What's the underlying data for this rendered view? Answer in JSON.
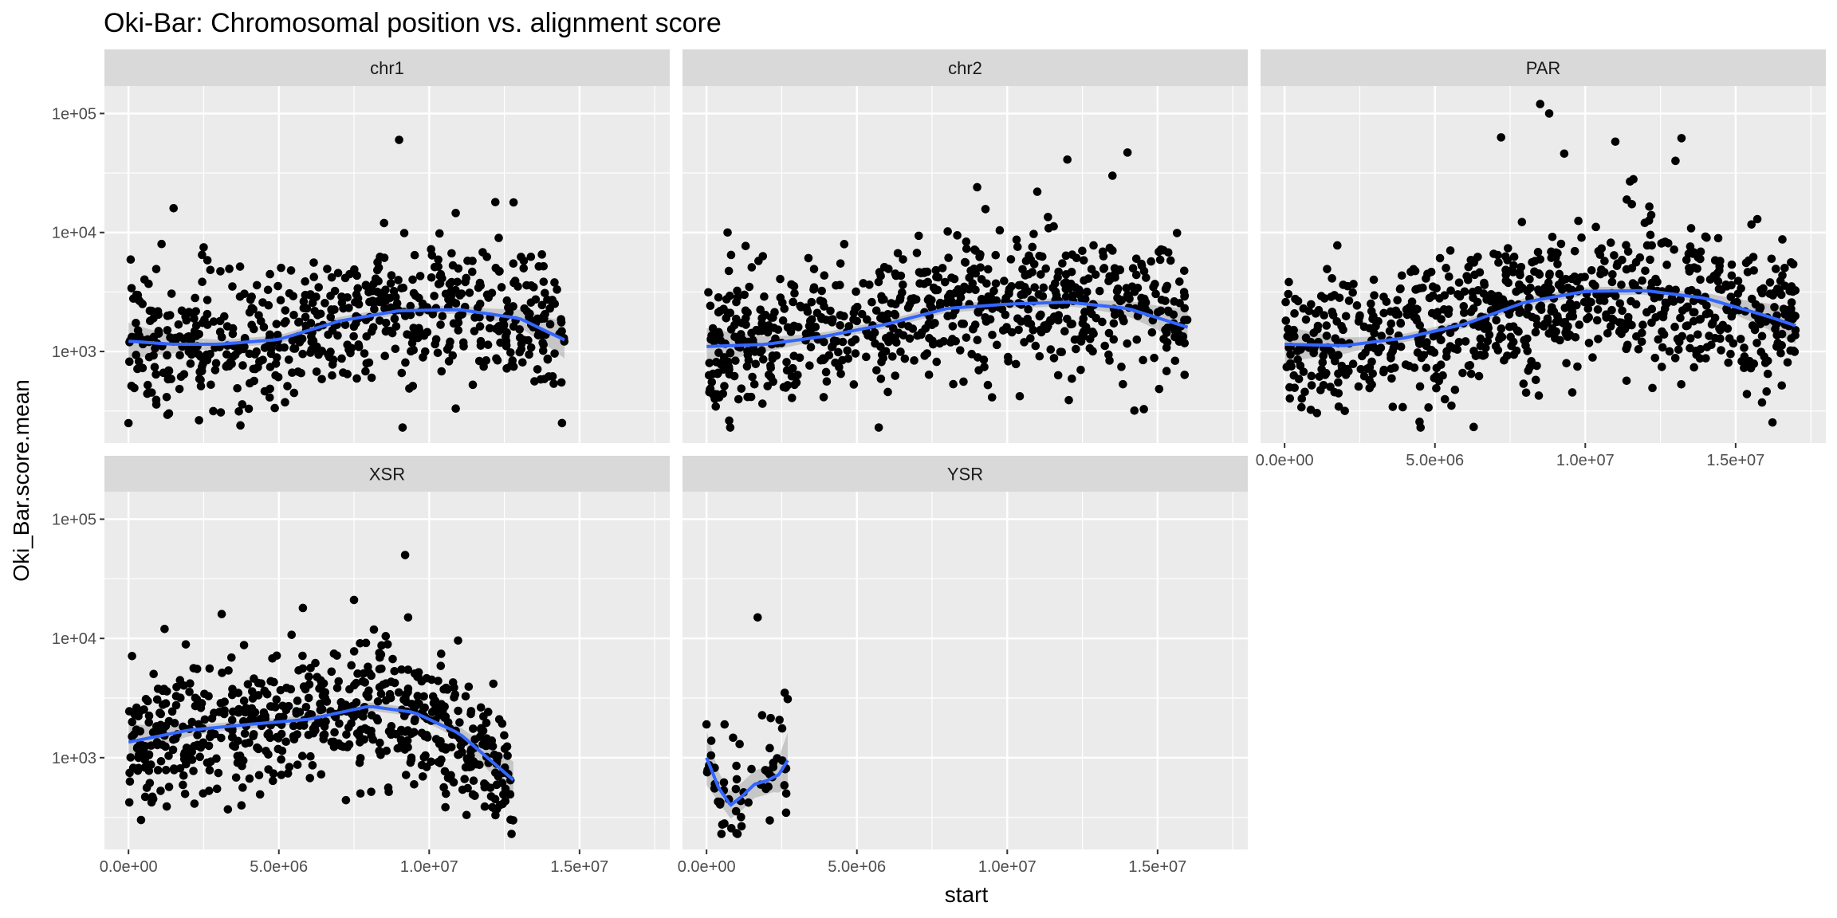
{
  "chart_data": {
    "type": "scatter",
    "title": "Oki-Bar: Chromosomal position vs. alignment score",
    "xlabel": "start",
    "ylabel": "Oki_Bar.score.mean",
    "y_scale": "log10",
    "x_range": [
      -800000,
      18000000
    ],
    "y_range": [
      170,
      170000
    ],
    "x_ticks": [
      {
        "value": 0,
        "label": "0.0e+00"
      },
      {
        "value": 5000000,
        "label": "5.0e+06"
      },
      {
        "value": 10000000,
        "label": "1.0e+07"
      },
      {
        "value": 15000000,
        "label": "1.5e+07"
      }
    ],
    "y_ticks": [
      {
        "value": 1000,
        "label": "1e+03"
      },
      {
        "value": 10000,
        "label": "1e+04"
      },
      {
        "value": 100000,
        "label": "1e+05"
      }
    ],
    "smooth_method": "loess (with confidence band)",
    "colors": {
      "panel_bg": "#ebebeb",
      "grid": "#ffffff",
      "strip_bg": "#d9d9d9",
      "points": "#000000",
      "smooth": "#3366ff",
      "band": "#999999"
    },
    "panels": [
      {
        "name": "chr1",
        "seed": 11,
        "n_points": 620,
        "x_extent": [
          0,
          14500000
        ],
        "scatter_sd": 0.28,
        "smooth": [
          [
            0,
            1220
          ],
          [
            1500000,
            1150
          ],
          [
            3000000,
            1150
          ],
          [
            5000000,
            1260
          ],
          [
            7000000,
            1800
          ],
          [
            9000000,
            2200
          ],
          [
            11000000,
            2250
          ],
          [
            13000000,
            1900
          ],
          [
            14500000,
            1250
          ]
        ],
        "outliers": [
          [
            0,
            250
          ],
          [
            1500000,
            16000
          ],
          [
            2500000,
            7500
          ],
          [
            1100000,
            8000
          ],
          [
            9000000,
            60000
          ],
          [
            12200000,
            18000
          ],
          [
            8500000,
            12000
          ],
          [
            4000000,
            330
          ]
        ]
      },
      {
        "name": "chr2",
        "seed": 23,
        "n_points": 720,
        "x_extent": [
          0,
          16000000
        ],
        "scatter_sd": 0.28,
        "smooth": [
          [
            0,
            1100
          ],
          [
            2000000,
            1150
          ],
          [
            4000000,
            1350
          ],
          [
            6000000,
            1700
          ],
          [
            8000000,
            2300
          ],
          [
            10000000,
            2500
          ],
          [
            12000000,
            2600
          ],
          [
            14000000,
            2300
          ],
          [
            16000000,
            1600
          ]
        ],
        "outliers": [
          [
            12000000,
            41000
          ],
          [
            14000000,
            47000
          ],
          [
            9000000,
            24000
          ],
          [
            1300000,
            7700
          ],
          [
            700000,
            10000
          ],
          [
            11000000,
            22000
          ],
          [
            13500000,
            30000
          ]
        ]
      },
      {
        "name": "PAR",
        "seed": 37,
        "n_points": 820,
        "x_extent": [
          0,
          17000000
        ],
        "scatter_sd": 0.3,
        "smooth": [
          [
            0,
            1150
          ],
          [
            2000000,
            1120
          ],
          [
            4000000,
            1300
          ],
          [
            6000000,
            1700
          ],
          [
            8000000,
            2600
          ],
          [
            10000000,
            3200
          ],
          [
            12000000,
            3250
          ],
          [
            14000000,
            2800
          ],
          [
            16000000,
            2000
          ],
          [
            17000000,
            1650
          ]
        ],
        "outliers": [
          [
            8500000,
            120000
          ],
          [
            8800000,
            100000
          ],
          [
            7200000,
            63000
          ],
          [
            9300000,
            46000
          ],
          [
            11000000,
            58000
          ],
          [
            13200000,
            62000
          ],
          [
            13000000,
            40000
          ],
          [
            11600000,
            28000
          ]
        ]
      },
      {
        "name": "XSR",
        "seed": 51,
        "n_points": 640,
        "x_extent": [
          0,
          12800000
        ],
        "scatter_sd": 0.27,
        "smooth": [
          [
            0,
            1350
          ],
          [
            2000000,
            1700
          ],
          [
            4000000,
            1900
          ],
          [
            6000000,
            2100
          ],
          [
            8000000,
            2700
          ],
          [
            9500000,
            2400
          ],
          [
            11000000,
            1600
          ],
          [
            12800000,
            650
          ]
        ],
        "outliers": [
          [
            9200000,
            50000
          ],
          [
            7500000,
            21000
          ],
          [
            5800000,
            18000
          ],
          [
            3100000,
            16000
          ],
          [
            1200000,
            12000
          ],
          [
            9300000,
            15000
          ]
        ]
      },
      {
        "name": "YSR",
        "seed": 67,
        "n_points": 55,
        "x_extent": [
          0,
          2700000
        ],
        "scatter_sd": 0.22,
        "smooth": [
          [
            0,
            1000
          ],
          [
            400000,
            560
          ],
          [
            800000,
            400
          ],
          [
            1200000,
            480
          ],
          [
            1600000,
            600
          ],
          [
            2000000,
            640
          ],
          [
            2400000,
            720
          ],
          [
            2700000,
            950
          ]
        ],
        "outliers": [
          [
            1700000,
            15000
          ],
          [
            2600000,
            3500
          ],
          [
            2700000,
            3100
          ],
          [
            0,
            1900
          ],
          [
            600000,
            1900
          ],
          [
            1100000,
            1300
          ]
        ]
      }
    ]
  }
}
